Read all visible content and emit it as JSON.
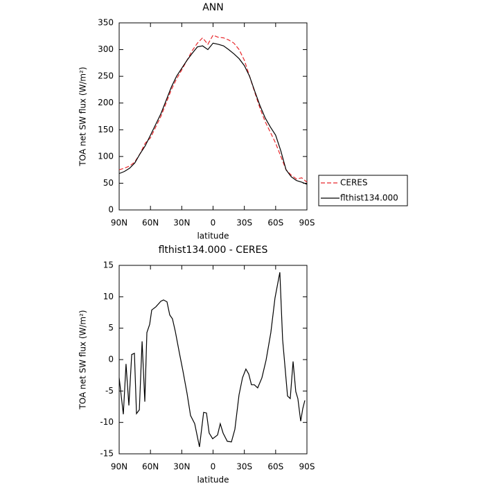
{
  "chart_data": [
    {
      "type": "line",
      "title": "ANN",
      "xlabel": "latitude",
      "ylabel": "TOA net SW flux (W/m²)",
      "x": [
        90,
        85,
        80,
        75,
        70,
        65,
        60,
        55,
        50,
        45,
        40,
        35,
        30,
        25,
        20,
        15,
        10,
        5,
        0,
        -5,
        -10,
        -15,
        -20,
        -25,
        -30,
        -35,
        -40,
        -45,
        -50,
        -55,
        -60,
        -65,
        -70,
        -75,
        -80,
        -85,
        -90
      ],
      "series": [
        {
          "name": "CERES",
          "color": "#e8262a",
          "linestyle": "dashed",
          "values": [
            75,
            78,
            82,
            90,
            105,
            125,
            135,
            155,
            175,
            200,
            225,
            245,
            262,
            280,
            298,
            312,
            322,
            310,
            327,
            323,
            322,
            318,
            312,
            300,
            280,
            250,
            220,
            190,
            165,
            145,
            125,
            100,
            75,
            65,
            58,
            60,
            52
          ]
        },
        {
          "name": "flthist134.000",
          "color": "#000000",
          "linestyle": "solid",
          "values": [
            68,
            72,
            78,
            88,
            105,
            120,
            140,
            160,
            180,
            205,
            230,
            250,
            265,
            280,
            293,
            305,
            307,
            300,
            312,
            310,
            307,
            300,
            292,
            283,
            270,
            250,
            222,
            195,
            172,
            155,
            140,
            110,
            75,
            62,
            55,
            52,
            48
          ]
        }
      ],
      "xlim": [
        90,
        -90
      ],
      "xticks": [
        {
          "value": 90,
          "label": "90N"
        },
        {
          "value": 60,
          "label": "60N"
        },
        {
          "value": 30,
          "label": "30N"
        },
        0,
        {
          "value": -30,
          "label": "30S"
        },
        {
          "value": -60,
          "label": "60S"
        },
        {
          "value": -90,
          "label": "90S"
        }
      ],
      "ylim": [
        0,
        350
      ],
      "yticks": [
        0,
        50,
        100,
        150,
        200,
        250,
        300,
        350
      ],
      "legend": "outside-right"
    },
    {
      "type": "line",
      "title": "flthist134.000 - CERES",
      "xlabel": "latitude",
      "ylabel": "TOA net SW flux (W/m²)",
      "color": "#000000",
      "x": [
        90,
        86,
        83.4,
        80.7,
        78,
        75.4,
        73.4,
        70.7,
        68,
        65.4,
        63.4,
        60.8,
        58.8,
        54.8,
        50,
        47.5,
        44.2,
        41.5,
        38.9,
        36.2,
        32.2,
        28.9,
        24.9,
        21.6,
        17.6,
        13,
        9,
        6.3,
        3.7,
        0.4,
        -4.3,
        -6.9,
        -9.6,
        -13.6,
        -17.6,
        -20.9,
        -24.9,
        -28.2,
        -31.5,
        -34.2,
        -36.8,
        -39.5,
        -42.8,
        -46.8,
        -50.8,
        -55.4,
        -59.4,
        -64,
        -66.7,
        -71.4,
        -74,
        -76.7,
        -79.3,
        -81.3,
        -84,
        -86,
        -88
      ],
      "values": [
        -2.9,
        -8.7,
        -0.7,
        -7.3,
        0.8,
        1,
        -8.6,
        -8,
        2.9,
        -6.7,
        4.3,
        5.6,
        7.9,
        8.4,
        9.3,
        9.5,
        9.2,
        7.1,
        6.5,
        4.5,
        1,
        -1.8,
        -5.4,
        -8.9,
        -10.2,
        -13.9,
        -8.4,
        -8.5,
        -11.7,
        -12.6,
        -12,
        -10.2,
        -11.7,
        -13,
        -13.1,
        -11.1,
        -5.6,
        -2.9,
        -1.5,
        -2.3,
        -4,
        -4,
        -4.5,
        -2.9,
        -0.1,
        4.3,
        9.8,
        13.9,
        3.2,
        -5.8,
        -6.2,
        -0.3,
        -5.1,
        -6.2,
        -9.8,
        -7.8,
        -6.5
      ],
      "xlim": [
        90,
        -90
      ],
      "xticks": [
        {
          "value": 90,
          "label": "90N"
        },
        {
          "value": 60,
          "label": "60N"
        },
        {
          "value": 30,
          "label": "30N"
        },
        0,
        {
          "value": -30,
          "label": "30S"
        },
        {
          "value": -60,
          "label": "60S"
        },
        {
          "value": -90,
          "label": "90S"
        }
      ],
      "ylim": [
        -15,
        15
      ],
      "yticks": [
        -15,
        -10,
        -5,
        0,
        5,
        10,
        15
      ]
    }
  ]
}
